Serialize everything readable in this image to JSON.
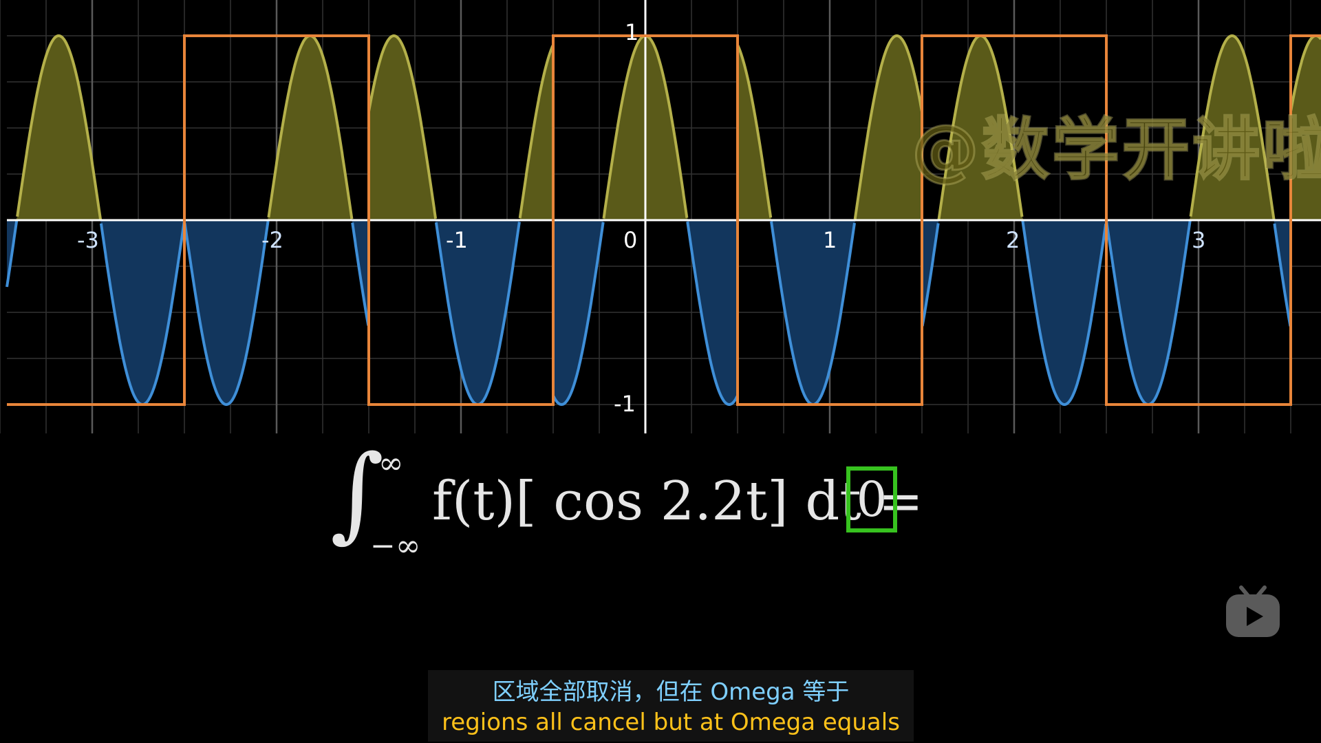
{
  "graph": {
    "x_ticks": [
      "-3",
      "-2",
      "-1",
      "0",
      "1",
      "2",
      "3"
    ],
    "y_ticks": [
      "1",
      "-1"
    ],
    "colors": {
      "square_wave": "#e8853a",
      "cos_curve_positive": "#b4b04a",
      "cos_curve_negative": "#3f8fd8",
      "fill_positive": "#5a5a19",
      "fill_negative": "#12365d",
      "grid": "#5a5a5a"
    }
  },
  "watermark": "@数学开讲啦",
  "formula": {
    "upper_limit": "∞",
    "lower_limit": "−∞",
    "expression": "f(t)[ cos 2.2t]  dt =",
    "result": "0"
  },
  "subtitles": {
    "chinese": "区域全部取消，但在 Omega 等于",
    "english": "regions all cancel but at Omega equals"
  },
  "icons": {
    "player_logo": "tv-play-icon"
  }
}
